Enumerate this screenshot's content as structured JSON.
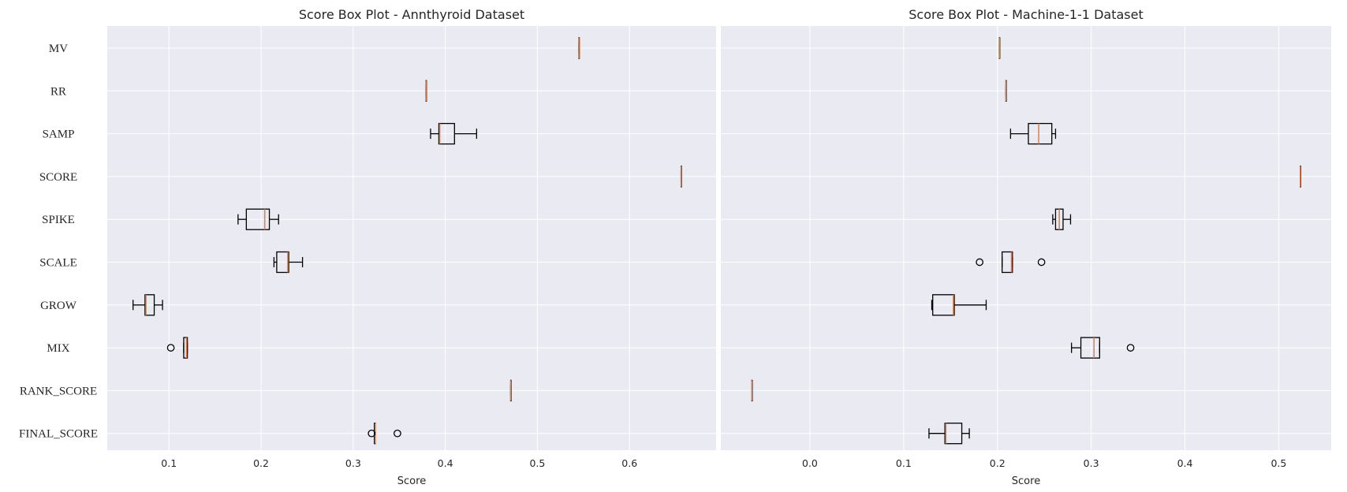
{
  "colors": {
    "panel_bg": "#eaeaf2",
    "grid": "#ffffff",
    "box_edge": "#000000",
    "median": "#dd8452"
  },
  "chart_data": [
    {
      "type": "boxplot",
      "title": "Score Box Plot - Annthyroid Dataset",
      "xlabel": "Score",
      "ylabel": "",
      "xlim": [
        0.033,
        0.694
      ],
      "xticks": [
        0.1,
        0.2,
        0.3,
        0.4,
        0.5,
        0.6
      ],
      "xtick_labels": [
        "0.1",
        "0.2",
        "0.3",
        "0.4",
        "0.5",
        "0.6"
      ],
      "grid": true,
      "categories": [
        "MV",
        "RR",
        "SAMP",
        "SCORE",
        "SPIKE",
        "SCALE",
        "GROW",
        "MIX",
        "RANK_SCORE",
        "FINAL_SCORE"
      ],
      "boxes": [
        {
          "category": "MV",
          "whislo": 0.545,
          "q1": 0.545,
          "med": 0.545,
          "q3": 0.545,
          "whishi": 0.545,
          "fliers": []
        },
        {
          "category": "RR",
          "whislo": 0.379,
          "q1": 0.379,
          "med": 0.379,
          "q3": 0.379,
          "whishi": 0.379,
          "fliers": []
        },
        {
          "category": "SAMP",
          "whislo": 0.384,
          "q1": 0.393,
          "med": 0.394,
          "q3": 0.41,
          "whishi": 0.434,
          "fliers": []
        },
        {
          "category": "SCORE",
          "whislo": 0.656,
          "q1": 0.656,
          "med": 0.656,
          "q3": 0.656,
          "whishi": 0.656,
          "fliers": []
        },
        {
          "category": "SPIKE",
          "whislo": 0.175,
          "q1": 0.184,
          "med": 0.204,
          "q3": 0.209,
          "whishi": 0.219,
          "fliers": []
        },
        {
          "category": "SCALE",
          "whislo": 0.214,
          "q1": 0.217,
          "med": 0.229,
          "q3": 0.23,
          "whishi": 0.245,
          "fliers": []
        },
        {
          "category": "GROW",
          "whislo": 0.061,
          "q1": 0.074,
          "med": 0.075,
          "q3": 0.084,
          "whishi": 0.093,
          "fliers": []
        },
        {
          "category": "MIX",
          "whislo": 0.116,
          "q1": 0.116,
          "med": 0.119,
          "q3": 0.12,
          "whishi": 0.12,
          "fliers": [
            0.102
          ]
        },
        {
          "category": "RANK_SCORE",
          "whislo": 0.471,
          "q1": 0.471,
          "med": 0.471,
          "q3": 0.471,
          "whishi": 0.471,
          "fliers": []
        },
        {
          "category": "FINAL_SCORE",
          "whislo": 0.323,
          "q1": 0.323,
          "med": 0.324,
          "q3": 0.324,
          "whishi": 0.324,
          "fliers": [
            0.32,
            0.348
          ]
        }
      ]
    },
    {
      "type": "boxplot",
      "title": "Score Box Plot - Machine-1-1 Dataset",
      "xlabel": "Score",
      "ylabel": "",
      "xlim": [
        -0.095,
        0.556
      ],
      "xticks": [
        0.0,
        0.1,
        0.2,
        0.3,
        0.4,
        0.5
      ],
      "xtick_labels": [
        "0.0",
        "0.1",
        "0.2",
        "0.3",
        "0.4",
        "0.5"
      ],
      "grid": true,
      "categories": [
        "MV",
        "RR",
        "SAMP",
        "SCORE",
        "SPIKE",
        "SCALE",
        "GROW",
        "MIX",
        "RANK_SCORE",
        "FINAL_SCORE"
      ],
      "boxes": [
        {
          "category": "MV",
          "whislo": 0.202,
          "q1": 0.202,
          "med": 0.202,
          "q3": 0.202,
          "whishi": 0.202,
          "fliers": []
        },
        {
          "category": "RR",
          "whislo": 0.209,
          "q1": 0.209,
          "med": 0.209,
          "q3": 0.209,
          "whishi": 0.209,
          "fliers": []
        },
        {
          "category": "SAMP",
          "whislo": 0.214,
          "q1": 0.233,
          "med": 0.244,
          "q3": 0.258,
          "whishi": 0.262,
          "fliers": []
        },
        {
          "category": "SCORE",
          "whislo": 0.523,
          "q1": 0.523,
          "med": 0.523,
          "q3": 0.523,
          "whishi": 0.523,
          "fliers": []
        },
        {
          "category": "SPIKE",
          "whislo": 0.259,
          "q1": 0.262,
          "med": 0.266,
          "q3": 0.27,
          "whishi": 0.278,
          "fliers": []
        },
        {
          "category": "SCALE",
          "whislo": 0.205,
          "q1": 0.205,
          "med": 0.215,
          "q3": 0.216,
          "whishi": 0.216,
          "fliers": [
            0.181,
            0.247
          ]
        },
        {
          "category": "GROW",
          "whislo": 0.13,
          "q1": 0.131,
          "med": 0.153,
          "q3": 0.154,
          "whishi": 0.188,
          "fliers": []
        },
        {
          "category": "MIX",
          "whislo": 0.279,
          "q1": 0.289,
          "med": 0.303,
          "q3": 0.309,
          "whishi": 0.309,
          "fliers": [
            0.342
          ]
        },
        {
          "category": "RANK_SCORE",
          "whislo": -0.062,
          "q1": -0.062,
          "med": -0.062,
          "q3": -0.062,
          "whishi": -0.062,
          "fliers": []
        },
        {
          "category": "FINAL_SCORE",
          "whislo": 0.127,
          "q1": 0.144,
          "med": 0.145,
          "q3": 0.162,
          "whishi": 0.17,
          "fliers": []
        }
      ]
    }
  ]
}
